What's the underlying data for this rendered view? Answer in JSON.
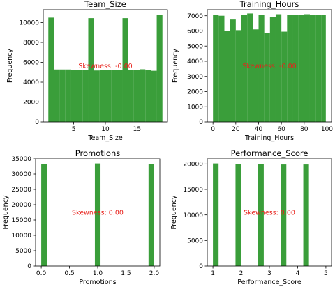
{
  "chart_data": [
    {
      "type": "bar",
      "title": "Team_Size",
      "xlabel": "Team_Size",
      "ylabel": "Frequency",
      "annotation": "Skewness: -0.00",
      "xlim": [
        0.2,
        19.8
      ],
      "ylim": [
        0,
        11300
      ],
      "xticks": [
        5,
        10,
        15
      ],
      "yticks": [
        0,
        2000,
        4000,
        6000,
        8000,
        10000
      ],
      "bins": [
        {
          "x0": 1.0,
          "x1": 1.9,
          "value": 10500
        },
        {
          "x0": 1.9,
          "x1": 2.8,
          "value": 5280
        },
        {
          "x0": 2.8,
          "x1": 3.7,
          "value": 5280
        },
        {
          "x0": 3.7,
          "x1": 4.6,
          "value": 5280
        },
        {
          "x0": 4.6,
          "x1": 5.5,
          "value": 5240
        },
        {
          "x0": 5.5,
          "x1": 6.4,
          "value": 5200
        },
        {
          "x0": 6.4,
          "x1": 7.3,
          "value": 5220
        },
        {
          "x0": 7.3,
          "x1": 8.2,
          "value": 10450
        },
        {
          "x0": 8.2,
          "x1": 9.1,
          "value": 5180
        },
        {
          "x0": 9.1,
          "x1": 10.0,
          "value": 5200
        },
        {
          "x0": 10.0,
          "x1": 10.9,
          "value": 5230
        },
        {
          "x0": 10.9,
          "x1": 11.8,
          "value": 5260
        },
        {
          "x0": 11.8,
          "x1": 12.7,
          "value": 5240
        },
        {
          "x0": 12.7,
          "x1": 13.6,
          "value": 10450
        },
        {
          "x0": 13.6,
          "x1": 14.5,
          "value": 5200
        },
        {
          "x0": 14.5,
          "x1": 15.4,
          "value": 5260
        },
        {
          "x0": 15.4,
          "x1": 16.3,
          "value": 5300
        },
        {
          "x0": 16.3,
          "x1": 17.2,
          "value": 5200
        },
        {
          "x0": 17.2,
          "x1": 18.1,
          "value": 5150
        },
        {
          "x0": 18.1,
          "x1": 19.0,
          "value": 10800
        }
      ]
    },
    {
      "type": "bar",
      "title": "Training_Hours",
      "xlabel": "Training_Hours",
      "ylabel": "Frequency",
      "annotation": "Skewness: -0.00",
      "xlim": [
        -5,
        104
      ],
      "ylim": [
        0,
        7400
      ],
      "xticks": [
        0,
        20,
        40,
        60,
        80,
        100
      ],
      "yticks": [
        0,
        1000,
        2000,
        3000,
        4000,
        5000,
        6000,
        7000
      ],
      "bins": [
        {
          "x0": 0,
          "x1": 5,
          "value": 7050
        },
        {
          "x0": 5,
          "x1": 10,
          "value": 7000
        },
        {
          "x0": 10,
          "x1": 15,
          "value": 5980
        },
        {
          "x0": 15,
          "x1": 20,
          "value": 6750
        },
        {
          "x0": 20,
          "x1": 25,
          "value": 6050
        },
        {
          "x0": 25,
          "x1": 30,
          "value": 7050
        },
        {
          "x0": 30,
          "x1": 35,
          "value": 7150
        },
        {
          "x0": 35,
          "x1": 40,
          "value": 6100
        },
        {
          "x0": 40,
          "x1": 45,
          "value": 7050
        },
        {
          "x0": 45,
          "x1": 50,
          "value": 5850
        },
        {
          "x0": 50,
          "x1": 55,
          "value": 6900
        },
        {
          "x0": 55,
          "x1": 60,
          "value": 7100
        },
        {
          "x0": 60,
          "x1": 65,
          "value": 5950
        },
        {
          "x0": 65,
          "x1": 70,
          "value": 7050
        },
        {
          "x0": 70,
          "x1": 75,
          "value": 7050
        },
        {
          "x0": 75,
          "x1": 80,
          "value": 7050
        },
        {
          "x0": 80,
          "x1": 85,
          "value": 7100
        },
        {
          "x0": 85,
          "x1": 90,
          "value": 7050
        },
        {
          "x0": 90,
          "x1": 95,
          "value": 7050
        },
        {
          "x0": 95,
          "x1": 99,
          "value": 7050
        }
      ]
    },
    {
      "type": "bar",
      "title": "Promotions",
      "xlabel": "Promotions",
      "ylabel": "Frequency",
      "annotation": "Skewness: 0.00",
      "xlim": [
        -0.1,
        2.1
      ],
      "ylim": [
        0,
        35000
      ],
      "xticks": [
        0.0,
        0.5,
        1.0,
        1.5,
        2.0
      ],
      "xtick_labels": [
        "0.0",
        "0.5",
        "1.0",
        "1.5",
        "2.0"
      ],
      "yticks": [
        0,
        5000,
        10000,
        15000,
        20000,
        25000,
        30000,
        35000
      ],
      "bins": [
        {
          "x0": 0.0,
          "x1": 0.1,
          "value": 33300
        },
        {
          "x0": 0.95,
          "x1": 1.05,
          "value": 33500
        },
        {
          "x0": 1.9,
          "x1": 2.0,
          "value": 33200
        }
      ]
    },
    {
      "type": "bar",
      "title": "Performance_Score",
      "xlabel": "Performance_Score",
      "ylabel": "Frequency",
      "annotation": "Skewness: 0.00",
      "xlim": [
        0.8,
        5.2
      ],
      "ylim": [
        0,
        21000
      ],
      "xticks": [
        1,
        2,
        3,
        4,
        5
      ],
      "yticks": [
        0,
        5000,
        10000,
        15000,
        20000
      ],
      "bins": [
        {
          "x0": 1.0,
          "x1": 1.2,
          "value": 20100
        },
        {
          "x0": 1.8,
          "x1": 2.0,
          "value": 19950
        },
        {
          "x0": 2.6,
          "x1": 2.8,
          "value": 19950
        },
        {
          "x0": 3.4,
          "x1": 3.6,
          "value": 19900
        },
        {
          "x0": 4.2,
          "x1": 4.4,
          "value": 19900
        }
      ]
    }
  ],
  "colors": {
    "bar": "#3a9e3a",
    "annotation": "#e8201a",
    "axis": "#000000"
  }
}
